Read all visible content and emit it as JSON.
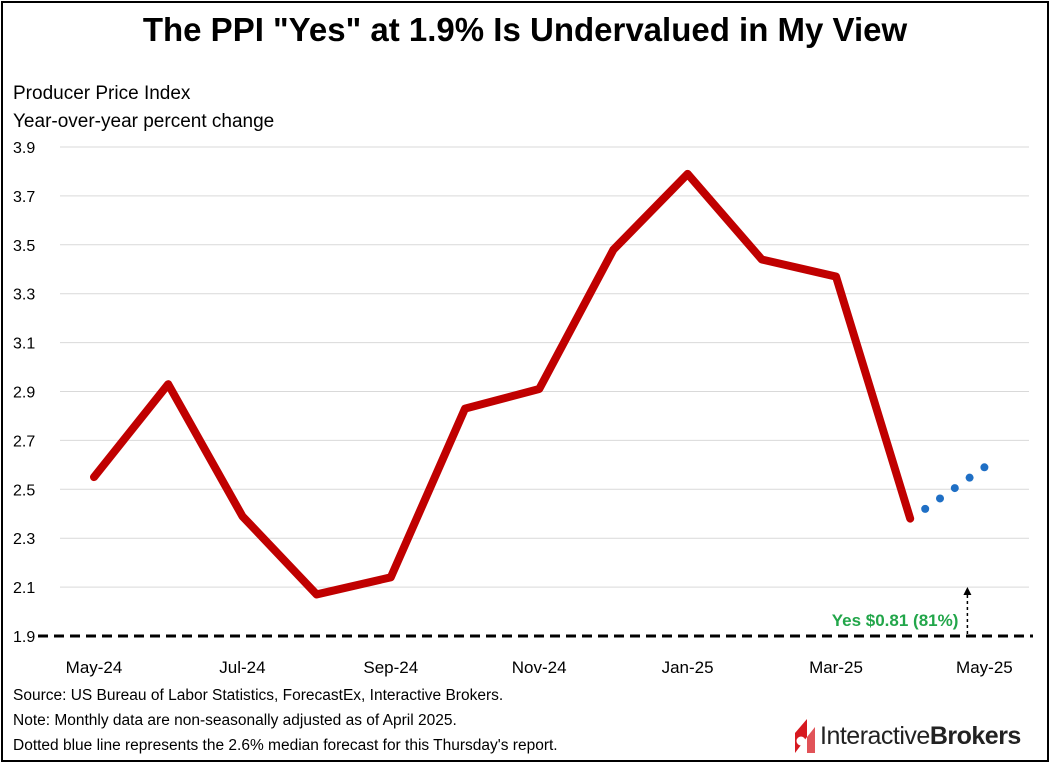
{
  "title": "The PPI \"Yes\" at 1.9% Is Undervalued in My View",
  "subtitle_lines": [
    "Producer Price Index",
    "Year-over-year percent change"
  ],
  "notes": [
    "Source: US Bureau of Labor Statistics, ForecastEx, Interactive Brokers.",
    "Note: Monthly data are non-seasonally adjusted as of April 2025.",
    "Dotted blue line represents the 2.6% median forecast for this Thursday's report."
  ],
  "logo": {
    "part1": "Interactive",
    "part2": "Brokers",
    "mark_color": "#d71920"
  },
  "colors": {
    "actual": "#c00000",
    "forecast": "#1f6fc5",
    "annotation": "#22a64a",
    "grid": "#d9d9d9",
    "threshold": "#000000"
  },
  "chart_data": {
    "type": "line",
    "title": "The PPI \"Yes\" at 1.9% Is Undervalued in My View",
    "ylabel": "Producer Price Index, Year-over-year percent change",
    "ylim": [
      1.9,
      3.9
    ],
    "y_ticks": [
      "1.9",
      "2.1",
      "2.3",
      "2.5",
      "2.7",
      "2.9",
      "3.1",
      "3.3",
      "3.5",
      "3.7",
      "3.9"
    ],
    "x_labels": [
      "May-24",
      "Jul-24",
      "Sep-24",
      "Nov-24",
      "Jan-25",
      "Mar-25",
      "May-25"
    ],
    "categories": [
      "May-24",
      "Jun-24",
      "Jul-24",
      "Aug-24",
      "Sep-24",
      "Oct-24",
      "Nov-24",
      "Dec-24",
      "Jan-25",
      "Feb-25",
      "Mar-25",
      "Apr-25",
      "May-25"
    ],
    "grid": true,
    "series": [
      {
        "style": "solid",
        "values": [
          2.55,
          2.93,
          2.39,
          2.07,
          2.14,
          2.83,
          2.91,
          3.48,
          3.79,
          3.44,
          3.37,
          2.38,
          null
        ]
      },
      {
        "style": "dotted",
        "x_from": "Apr-25",
        "x_to": "May-25",
        "values_from": 2.42,
        "values_to": 2.59
      }
    ],
    "threshold": {
      "value": 1.9,
      "style": "dashed"
    },
    "annotation": {
      "text": "Yes $0.81 (81%)",
      "x": "May-25"
    }
  }
}
